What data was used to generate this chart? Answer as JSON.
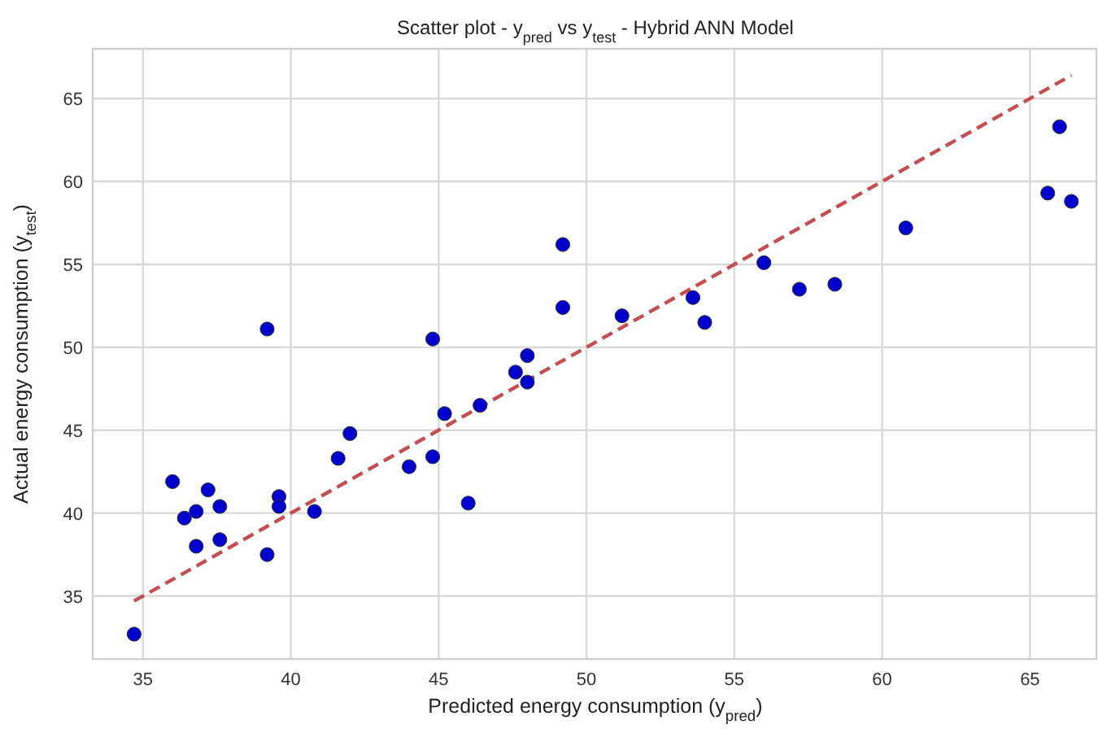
{
  "chart_data": {
    "type": "scatter",
    "title": "Scatter plot - y$_{pred}$ vs y$_{test}$ - Hybrid ANN Model",
    "xlabel": "Predicted energy consumption (y$_{pred}$)",
    "ylabel": "Actual energy consumption (y$_{test}$)",
    "xlim": [
      33.3,
      67.3
    ],
    "ylim": [
      31.2,
      68
    ],
    "xticks": [
      35,
      40,
      45,
      50,
      55,
      60,
      65
    ],
    "yticks": [
      35,
      40,
      45,
      50,
      55,
      60,
      65
    ],
    "grid": true,
    "series": [
      {
        "type": "scatter",
        "marker": "circle",
        "color": "#0000cc",
        "x": [
          34.7,
          36.0,
          36.4,
          36.8,
          36.8,
          37.2,
          37.6,
          37.6,
          39.2,
          39.2,
          39.6,
          39.6,
          40.8,
          41.6,
          42.0,
          44.0,
          44.8,
          44.8,
          45.2,
          46.0,
          46.4,
          47.6,
          48.0,
          48.0,
          49.2,
          49.2,
          51.2,
          53.6,
          54.0,
          56.0,
          57.2,
          58.4,
          60.8,
          65.6,
          66.0,
          66.4
        ],
        "values": [
          32.7,
          41.9,
          39.7,
          40.1,
          38.0,
          41.4,
          40.4,
          38.4,
          51.1,
          37.5,
          41.0,
          40.4,
          40.1,
          43.3,
          44.8,
          42.8,
          50.5,
          43.4,
          46.0,
          40.6,
          46.5,
          48.5,
          49.5,
          47.9,
          56.2,
          52.4,
          51.9,
          53.0,
          51.5,
          55.1,
          53.5,
          53.8,
          57.2,
          59.3,
          63.3,
          58.8
        ]
      },
      {
        "type": "line",
        "color": "#c44e52",
        "line_style": "dashed",
        "marker": "none",
        "x": [
          34.7,
          66.4
        ],
        "values": [
          34.7,
          66.4
        ]
      }
    ]
  }
}
